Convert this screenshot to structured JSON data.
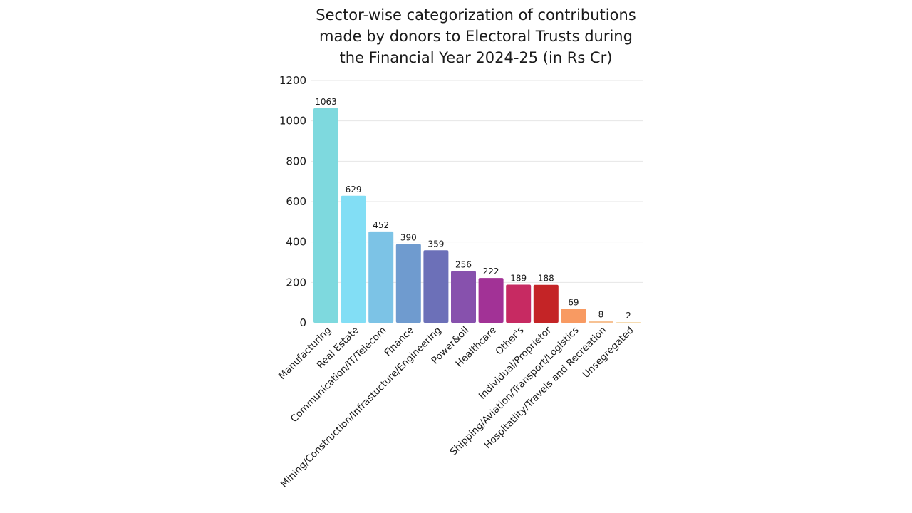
{
  "chart_data": {
    "type": "bar",
    "title": "Sector-wise categorization of contributions made by donors to Electoral Trusts during the Financial Year 2024-25 (in Rs Cr)",
    "title_lines": [
      "Sector-wise categorization of contributions",
      "made by donors to Electoral Trusts during",
      "the Financial Year 2024-25 (in Rs Cr)"
    ],
    "xlabel": "",
    "ylabel": "",
    "ylim": [
      0,
      1200
    ],
    "yticks": [
      0,
      200,
      400,
      600,
      800,
      1000,
      1200
    ],
    "grid": true,
    "legend": "none",
    "categories": [
      "Manufacturing",
      "Real Estate",
      "Communication/IT/Telecom",
      "Finance",
      "Mining/Construction/Infrastucture/Engineering",
      "Power&oil",
      "Healthcare",
      "Other's",
      "Individual/Proprietor",
      "Shipping/Aviation/Transport/Logistics",
      "Hospitatlity/Travels and Recreation",
      "Unsegregated"
    ],
    "values": [
      1063,
      629,
      452,
      390,
      359,
      256,
      222,
      189,
      188,
      69,
      8,
      2
    ],
    "colors": [
      "#7ed9de",
      "#82def5",
      "#7cc3e6",
      "#6f9bcf",
      "#6c70b8",
      "#8751ad",
      "#a23296",
      "#c72a62",
      "#c42426",
      "#f89a62",
      "#f7c294",
      "#f6dcb2"
    ]
  }
}
